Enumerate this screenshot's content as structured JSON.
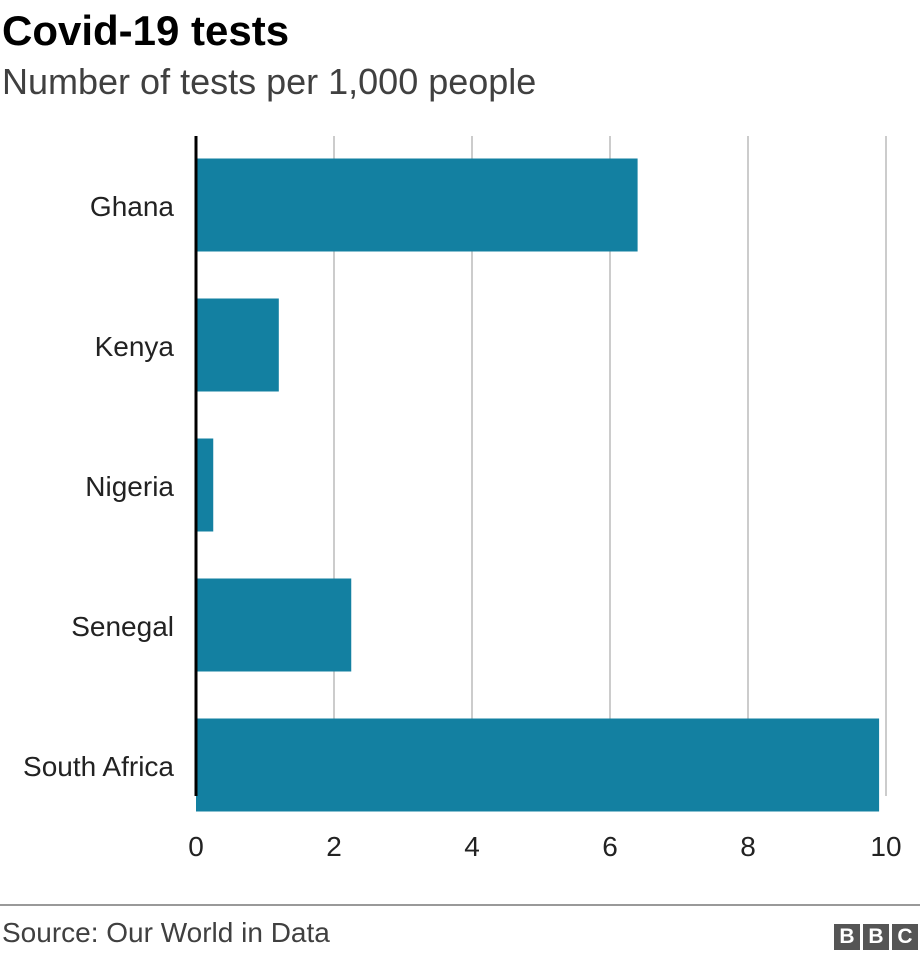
{
  "header": {
    "title": "Covid-19 tests",
    "subtitle": "Number of tests per 1,000 people"
  },
  "footer": {
    "source": "Source: Our World in Data",
    "logo_letters": [
      "B",
      "B",
      "C"
    ]
  },
  "colors": {
    "bar": "#1380A1",
    "grid": "#cccccc",
    "axis": "#000000"
  },
  "chart_data": {
    "type": "bar",
    "orientation": "horizontal",
    "title": "Covid-19 tests",
    "subtitle": "Number of tests per 1,000 people",
    "categories": [
      "Ghana",
      "Kenya",
      "Nigeria",
      "Senegal",
      "South Africa"
    ],
    "values": [
      6.4,
      1.2,
      0.25,
      2.25,
      9.9
    ],
    "xlim": [
      0,
      10
    ],
    "xticks": [
      0,
      2,
      4,
      6,
      8,
      10
    ],
    "grid": true,
    "xlabel": "",
    "ylabel": ""
  }
}
